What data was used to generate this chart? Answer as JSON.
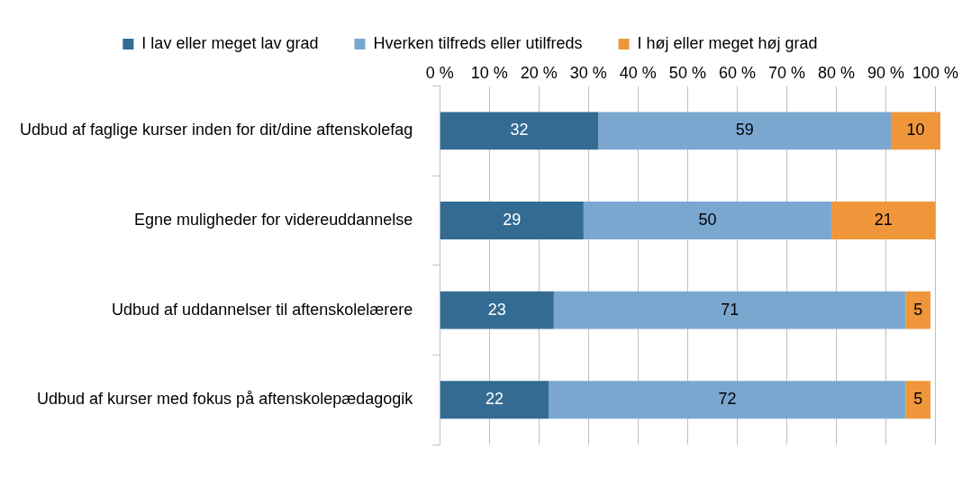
{
  "chart_data": {
    "type": "bar",
    "orientation": "horizontal",
    "stacked": true,
    "categories": [
      "Udbud af faglige kurser inden for dit/dine aftenskolefag",
      "Egne muligheder for videreuddannelse",
      "Udbud af uddannelser til aftenskolelærere",
      "Udbud af kurser med fokus på aftenskolepædagogik"
    ],
    "series": [
      {
        "name": "I lav eller meget lav grad",
        "color": "#336b93",
        "values": [
          32,
          29,
          23,
          22
        ]
      },
      {
        "name": "Hverken tilfreds eller utilfreds",
        "color": "#7aa7d0",
        "values": [
          59,
          50,
          71,
          72
        ]
      },
      {
        "name": "I høj eller meget høj grad",
        "color": "#f0963a",
        "values": [
          10,
          21,
          5,
          5
        ]
      }
    ],
    "xlim": [
      0,
      101
    ],
    "xticks": [
      {
        "value": 0,
        "label": "0 %"
      },
      {
        "value": 10,
        "label": "10 %"
      },
      {
        "value": 20,
        "label": "20 %"
      },
      {
        "value": 30,
        "label": "30 %"
      },
      {
        "value": 40,
        "label": "40 %"
      },
      {
        "value": 50,
        "label": "50 %"
      },
      {
        "value": 60,
        "label": "60 %"
      },
      {
        "value": 70,
        "label": "70 %"
      },
      {
        "value": 80,
        "label": "80 %"
      },
      {
        "value": 90,
        "label": "90 %"
      },
      {
        "value": 100,
        "label": "100 %"
      }
    ],
    "grid": "x",
    "legend": "top",
    "data_labels": true
  }
}
